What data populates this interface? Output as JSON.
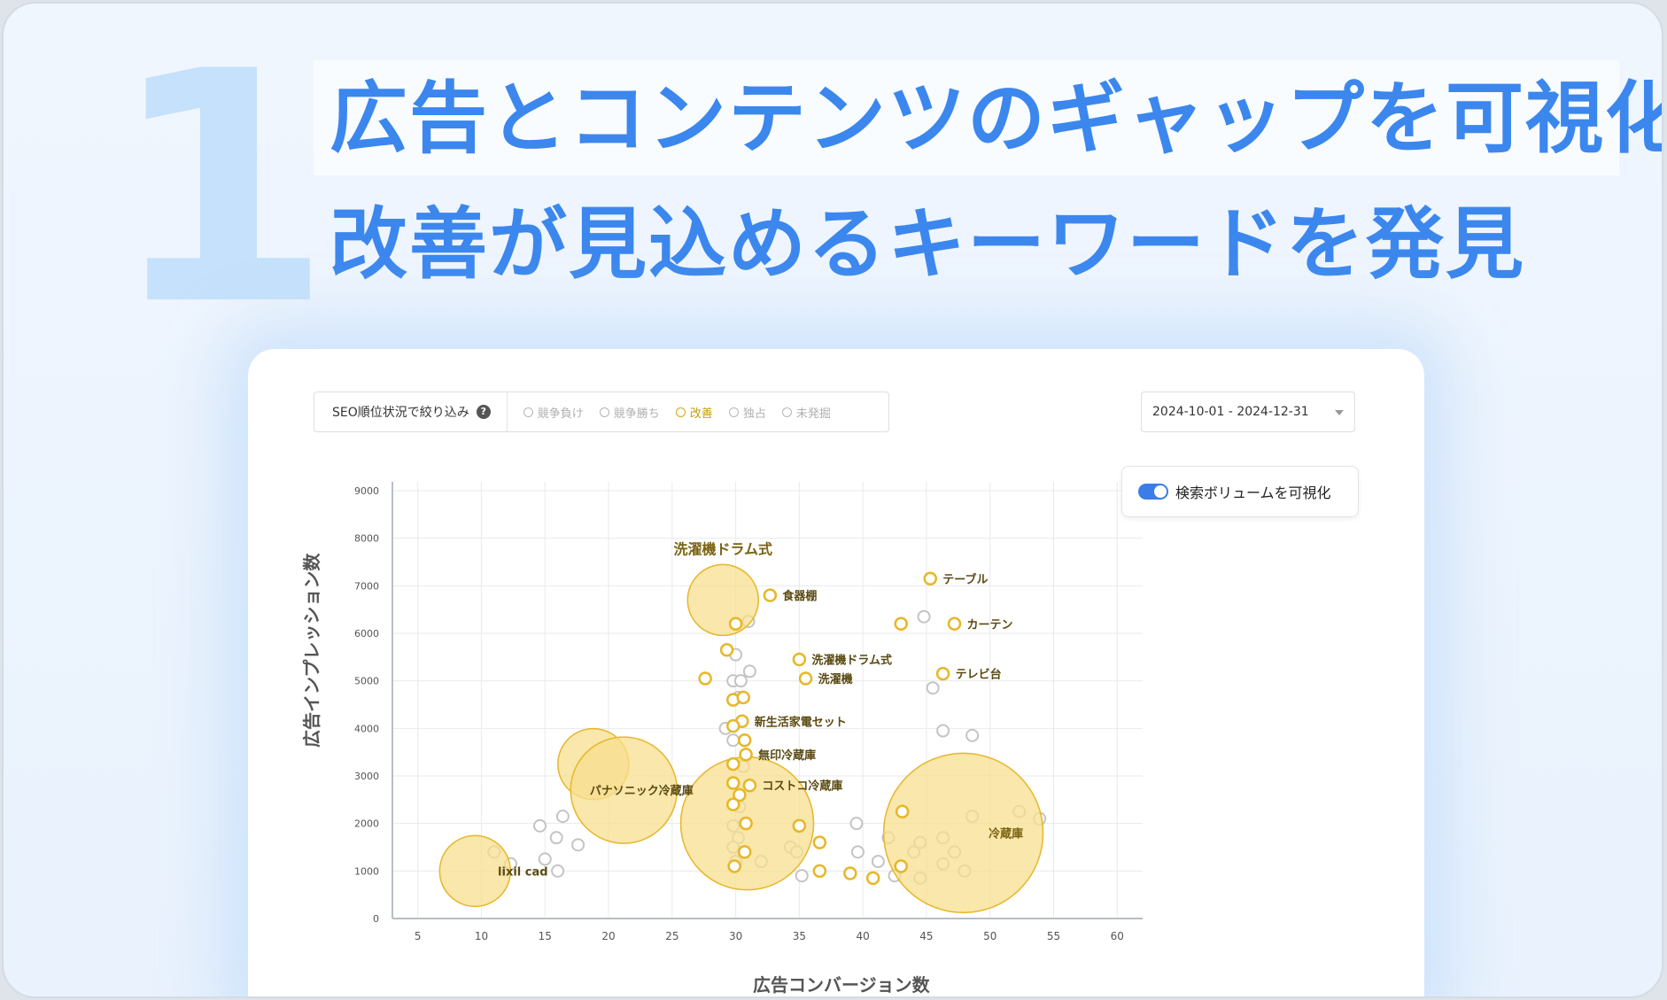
{
  "hero": {
    "number": "1",
    "title_line1": "広告とコンテンツのギャップを可視化",
    "title_line2": "改善が見込めるキーワードを発見"
  },
  "filter": {
    "label": "SEO順位状況で絞り込み",
    "help_icon": "?",
    "options": [
      {
        "label": "競争負け",
        "selected": false
      },
      {
        "label": "競争勝ち",
        "selected": false
      },
      {
        "label": "改善",
        "selected": true
      },
      {
        "label": "独占",
        "selected": false
      },
      {
        "label": "未発掘",
        "selected": false
      }
    ]
  },
  "date_range": "2024-10-01 - 2024-12-31",
  "toggle": {
    "label": "検索ボリュームを可視化",
    "on": true
  },
  "colors": {
    "highlight": "#e7b728",
    "highlight_fill": "#f7df8f",
    "muted": "#c4c4c4",
    "accent": "#3b87ee"
  },
  "chart_data": {
    "type": "scatter",
    "xlabel": "広告コンバージョン数",
    "ylabel": "広告インプレッション数",
    "xlim": [
      3,
      62
    ],
    "ylim": [
      0,
      9000
    ],
    "xticks": [
      5,
      10,
      15,
      20,
      25,
      30,
      35,
      40,
      45,
      50,
      55,
      60
    ],
    "yticks": [
      0,
      1000,
      2000,
      3000,
      4000,
      5000,
      6000,
      7000,
      8000,
      9000
    ],
    "grid": true,
    "bubbles": [
      {
        "x": 9.5,
        "y": 1000,
        "r": 40,
        "label": "lixil cad"
      },
      {
        "x": 18.8,
        "y": 3250,
        "r": 40,
        "label": ""
      },
      {
        "x": 21.2,
        "y": 2700,
        "r": 60,
        "label": "パナソニック冷蔵庫"
      },
      {
        "x": 29.0,
        "y": 6700,
        "r": 40,
        "label": "洗濯機ドラム式"
      },
      {
        "x": 30.9,
        "y": 2000,
        "r": 75,
        "label": ""
      },
      {
        "x": 47.9,
        "y": 1800,
        "r": 90,
        "label": "冷蔵庫"
      }
    ],
    "highlight_points": [
      {
        "x": 45.3,
        "y": 7150,
        "label": "テーブル"
      },
      {
        "x": 32.7,
        "y": 6800,
        "label": "食器棚"
      },
      {
        "x": 43.0,
        "y": 6200,
        "label": ""
      },
      {
        "x": 47.2,
        "y": 6200,
        "label": "カーテン"
      },
      {
        "x": 30.0,
        "y": 6200,
        "label": ""
      },
      {
        "x": 29.3,
        "y": 5650,
        "label": ""
      },
      {
        "x": 35.0,
        "y": 5450,
        "label": "洗濯機ドラム式"
      },
      {
        "x": 35.5,
        "y": 5050,
        "label": "洗濯機"
      },
      {
        "x": 46.3,
        "y": 5150,
        "label": "テレビ台"
      },
      {
        "x": 27.6,
        "y": 5050,
        "label": ""
      },
      {
        "x": 29.8,
        "y": 4600,
        "label": ""
      },
      {
        "x": 30.6,
        "y": 4650,
        "label": ""
      },
      {
        "x": 30.5,
        "y": 4150,
        "label": "新生活家電セット"
      },
      {
        "x": 29.8,
        "y": 4050,
        "label": ""
      },
      {
        "x": 30.7,
        "y": 3750,
        "label": ""
      },
      {
        "x": 30.8,
        "y": 3450,
        "label": "無印冷蔵庫"
      },
      {
        "x": 29.8,
        "y": 3250,
        "label": ""
      },
      {
        "x": 29.8,
        "y": 2850,
        "label": ""
      },
      {
        "x": 31.1,
        "y": 2800,
        "label": "コストコ冷蔵庫"
      },
      {
        "x": 30.3,
        "y": 2600,
        "label": ""
      },
      {
        "x": 29.8,
        "y": 2400,
        "label": ""
      },
      {
        "x": 43.1,
        "y": 2250,
        "label": ""
      },
      {
        "x": 30.8,
        "y": 2000,
        "label": ""
      },
      {
        "x": 35.0,
        "y": 1950,
        "label": ""
      },
      {
        "x": 36.6,
        "y": 1600,
        "label": ""
      },
      {
        "x": 30.7,
        "y": 1400,
        "label": ""
      },
      {
        "x": 29.9,
        "y": 1100,
        "label": ""
      },
      {
        "x": 43.0,
        "y": 1100,
        "label": ""
      },
      {
        "x": 36.6,
        "y": 1000,
        "label": ""
      },
      {
        "x": 39.0,
        "y": 950,
        "label": ""
      },
      {
        "x": 40.8,
        "y": 850,
        "label": ""
      }
    ],
    "muted_points": [
      {
        "x": 44.8,
        "y": 6350
      },
      {
        "x": 31.0,
        "y": 6250
      },
      {
        "x": 30.0,
        "y": 5550
      },
      {
        "x": 31.1,
        "y": 5200
      },
      {
        "x": 29.8,
        "y": 5000
      },
      {
        "x": 30.4,
        "y": 5000
      },
      {
        "x": 30.2,
        "y": 4650
      },
      {
        "x": 45.5,
        "y": 4850
      },
      {
        "x": 29.2,
        "y": 4000
      },
      {
        "x": 29.8,
        "y": 3750
      },
      {
        "x": 46.3,
        "y": 3950
      },
      {
        "x": 48.6,
        "y": 3850
      },
      {
        "x": 30.6,
        "y": 3200
      },
      {
        "x": 16.4,
        "y": 2150
      },
      {
        "x": 14.6,
        "y": 1950
      },
      {
        "x": 15.9,
        "y": 1700
      },
      {
        "x": 17.6,
        "y": 1550
      },
      {
        "x": 11.0,
        "y": 1400
      },
      {
        "x": 12.3,
        "y": 1150
      },
      {
        "x": 15.0,
        "y": 1250
      },
      {
        "x": 16.0,
        "y": 1000
      },
      {
        "x": 30.3,
        "y": 2350
      },
      {
        "x": 29.8,
        "y": 1950
      },
      {
        "x": 30.2,
        "y": 1700
      },
      {
        "x": 29.8,
        "y": 1500
      },
      {
        "x": 30.0,
        "y": 1200
      },
      {
        "x": 32.0,
        "y": 1200
      },
      {
        "x": 34.3,
        "y": 1500
      },
      {
        "x": 34.8,
        "y": 1400
      },
      {
        "x": 35.2,
        "y": 900
      },
      {
        "x": 39.5,
        "y": 2000
      },
      {
        "x": 39.6,
        "y": 1400
      },
      {
        "x": 41.2,
        "y": 1200
      },
      {
        "x": 42.0,
        "y": 1700
      },
      {
        "x": 42.5,
        "y": 900
      },
      {
        "x": 44.0,
        "y": 1400
      },
      {
        "x": 44.5,
        "y": 1600
      },
      {
        "x": 44.5,
        "y": 850
      },
      {
        "x": 46.3,
        "y": 1700
      },
      {
        "x": 46.3,
        "y": 1150
      },
      {
        "x": 47.2,
        "y": 1400
      },
      {
        "x": 48.0,
        "y": 1000
      },
      {
        "x": 48.6,
        "y": 2150
      },
      {
        "x": 52.3,
        "y": 2250
      },
      {
        "x": 53.9,
        "y": 2100
      }
    ]
  }
}
